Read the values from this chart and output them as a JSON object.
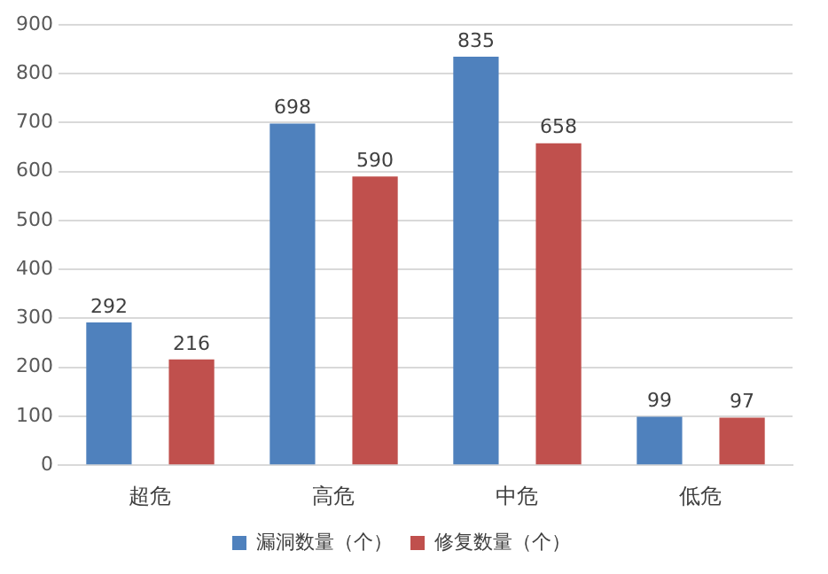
{
  "chart_data": {
    "type": "bar",
    "categories": [
      "超危",
      "高危",
      "中危",
      "低危"
    ],
    "series": [
      {
        "name": "漏洞数量（个）",
        "color": "#4f81bd",
        "values": [
          292,
          698,
          835,
          99
        ]
      },
      {
        "name": "修复数量（个）",
        "color": "#c0504d",
        "values": [
          216,
          590,
          658,
          97
        ]
      }
    ],
    "ylim": [
      0,
      900
    ],
    "yticks": [
      0,
      100,
      200,
      300,
      400,
      500,
      600,
      700,
      800,
      900
    ],
    "grid": "y",
    "legend": "bottom",
    "data_labels": true
  }
}
